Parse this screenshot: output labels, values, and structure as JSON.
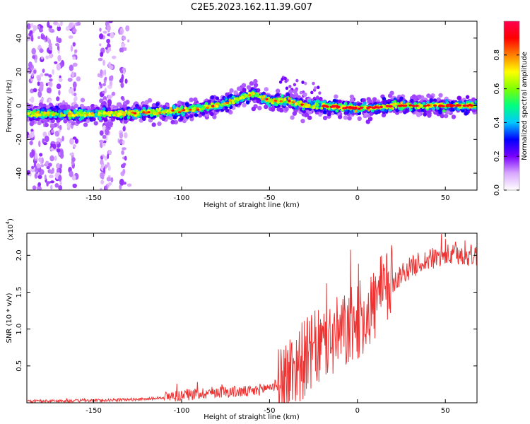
{
  "figure_title": "C2E5.2023.162.11.39.G07",
  "chart_data": [
    {
      "type": "heatmap",
      "xlabel": "Height of straight line (km)",
      "ylabel": "Frequency (Hz)",
      "xlim": [
        -188,
        68
      ],
      "ylim": [
        -50,
        50
      ],
      "x_ticks": [
        -150,
        -100,
        -50,
        0,
        50
      ],
      "y_ticks": [
        -40,
        -20,
        0,
        20,
        40
      ],
      "colorbar": {
        "label": "Normalized spectral amplitude",
        "range": [
          0,
          1
        ],
        "ticks": [
          0.0,
          0.2,
          0.4,
          0.6,
          0.8
        ],
        "tick_labels": [
          "0.0",
          "0.2",
          "0.4",
          "0.6",
          "0.8"
        ],
        "colormap": [
          "#ffffff",
          "#d9a8ff",
          "#7a00ff",
          "#0000ff",
          "#00c8ff",
          "#00ff80",
          "#7fff00",
          "#ffff00",
          "#ff8000",
          "#ff0000",
          "#ff0050"
        ]
      },
      "ridge": [
        {
          "x": -188,
          "f": -5
        },
        {
          "x": -150,
          "f": -5
        },
        {
          "x": -120,
          "f": -4
        },
        {
          "x": -100,
          "f": -3
        },
        {
          "x": -80,
          "f": 0
        },
        {
          "x": -70,
          "f": 3
        },
        {
          "x": -60,
          "f": 7
        },
        {
          "x": -50,
          "f": 3
        },
        {
          "x": -40,
          "f": 3
        },
        {
          "x": -30,
          "f": 0
        },
        {
          "x": -20,
          "f": 0
        },
        {
          "x": -10,
          "f": -1
        },
        {
          "x": 0,
          "f": -1.5
        },
        {
          "x": 10,
          "f": -1
        },
        {
          "x": 20,
          "f": 0
        },
        {
          "x": 40,
          "f": 0
        },
        {
          "x": 68,
          "f": 0
        }
      ]
    },
    {
      "type": "line",
      "xlabel": "Height of straight line (km)",
      "ylabel": "SNR (10 * v/v)",
      "ylabel_exponent": "(x10",
      "ylabel_exponent_power": "4",
      "ylabel_exponent_close": ")",
      "xlim": [
        -188,
        68
      ],
      "ylim": [
        0,
        2.3
      ],
      "x_ticks": [
        -150,
        -100,
        -50,
        0,
        50
      ],
      "y_ticks": [
        0.5,
        1.0,
        1.5,
        2.0
      ],
      "y_tick_labels": [
        "0.5",
        "1.0",
        "1.5",
        "2.0"
      ],
      "line_color": "#ee3333",
      "series": [
        {
          "trend": [
            {
              "x": -188,
              "y": 0.02
            },
            {
              "x": -150,
              "y": 0.03
            },
            {
              "x": -120,
              "y": 0.05
            },
            {
              "x": -100,
              "y": 0.1
            },
            {
              "x": -80,
              "y": 0.15
            },
            {
              "x": -60,
              "y": 0.15
            },
            {
              "x": -45,
              "y": 0.25
            },
            {
              "x": -35,
              "y": 0.5
            },
            {
              "x": -25,
              "y": 0.7
            },
            {
              "x": -15,
              "y": 0.85
            },
            {
              "x": -5,
              "y": 1.0
            },
            {
              "x": 5,
              "y": 1.2
            },
            {
              "x": 15,
              "y": 1.5
            },
            {
              "x": 25,
              "y": 1.75
            },
            {
              "x": 35,
              "y": 1.9
            },
            {
              "x": 50,
              "y": 2.0
            },
            {
              "x": 68,
              "y": 2.0
            }
          ]
        }
      ]
    }
  ]
}
